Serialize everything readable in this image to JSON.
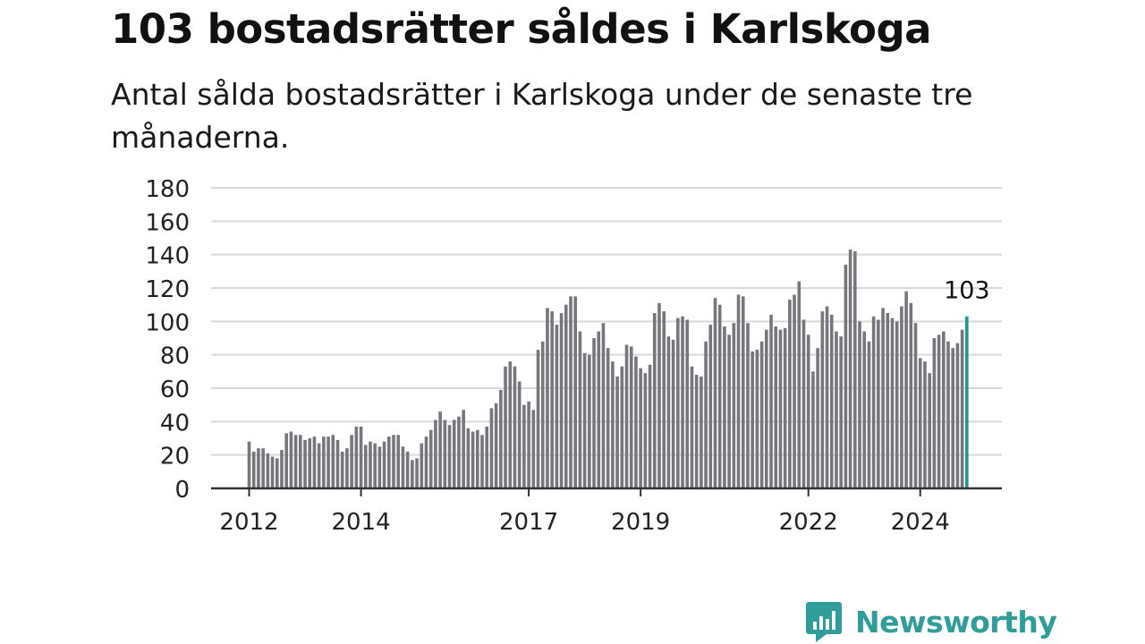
{
  "title": "103 bostadsrätter såldes i Karlskoga",
  "subtitle": "Antal sålda bostadsrätter i Karlskoga under de senaste tre månaderna.",
  "brand": {
    "name": "Newsworthy",
    "color": "#2f9e9a"
  },
  "colors": {
    "bar": "#77767c",
    "highlight": "#1a9a93",
    "grid": "#d9d9d9",
    "axis": "#333333"
  },
  "chart_data": {
    "type": "bar",
    "title": "",
    "xlabel": "",
    "ylabel": "",
    "ylim": [
      0,
      180
    ],
    "yticks": [
      0,
      20,
      40,
      60,
      80,
      100,
      120,
      140,
      160,
      180
    ],
    "x_start": "2012-01",
    "x_interval": "month",
    "xtick_labels": [
      {
        "label": "2012",
        "index": 0
      },
      {
        "label": "2014",
        "index": 24
      },
      {
        "label": "2017",
        "index": 60
      },
      {
        "label": "2019",
        "index": 84
      },
      {
        "label": "2022",
        "index": 120
      },
      {
        "label": "2024",
        "index": 144
      }
    ],
    "grid": true,
    "highlight": {
      "index": 154,
      "label": "103"
    },
    "values": [
      28,
      22,
      24,
      24,
      21,
      19,
      18,
      23,
      33,
      34,
      32,
      32,
      29,
      30,
      31,
      27,
      31,
      31,
      32,
      29,
      22,
      24,
      32,
      37,
      37,
      26,
      28,
      27,
      25,
      28,
      31,
      32,
      32,
      25,
      22,
      17,
      18,
      27,
      31,
      35,
      41,
      46,
      41,
      38,
      41,
      43,
      47,
      36,
      34,
      35,
      32,
      37,
      48,
      51,
      59,
      73,
      76,
      73,
      64,
      50,
      52,
      47,
      83,
      88,
      108,
      106,
      98,
      105,
      110,
      115,
      115,
      94,
      81,
      80,
      90,
      94,
      99,
      84,
      76,
      67,
      73,
      86,
      85,
      79,
      72,
      69,
      74,
      105,
      111,
      106,
      91,
      89,
      102,
      103,
      101,
      73,
      68,
      67,
      88,
      98,
      114,
      110,
      97,
      92,
      99,
      116,
      115,
      99,
      82,
      83,
      88,
      95,
      104,
      97,
      95,
      96,
      113,
      116,
      124,
      101,
      92,
      70,
      84,
      106,
      109,
      104,
      94,
      91,
      134,
      143,
      142,
      100,
      94,
      88,
      103,
      101,
      108,
      105,
      102,
      100,
      109,
      118,
      111,
      99,
      78,
      76,
      69,
      90,
      92,
      94,
      88,
      84,
      87,
      95,
      103
    ]
  }
}
